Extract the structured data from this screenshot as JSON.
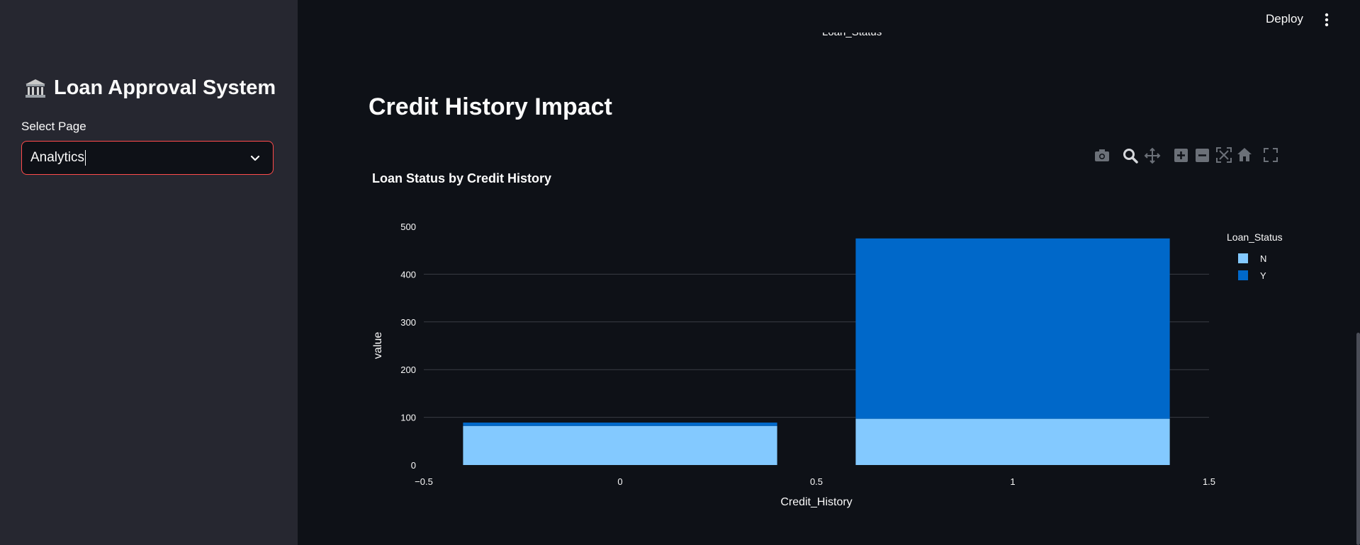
{
  "sidebar": {
    "app_title": "Loan Approval System",
    "app_icon": "bank-icon",
    "select_label": "Select Page",
    "select_value": "Analytics"
  },
  "header": {
    "deploy_label": "Deploy",
    "menu_icon": "kebab-menu-icon"
  },
  "main": {
    "cut_off_text": "Loan_Status",
    "section_title": "Credit History Impact"
  },
  "colors": {
    "accent": "#ff4b4b",
    "series_n": "#83c9ff",
    "series_y": "#0068c9",
    "background": "#0e1117",
    "sidebar_bg": "#262730"
  },
  "modebar": [
    "camera-icon",
    "zoom-icon",
    "pan-icon",
    "zoom-in-icon",
    "zoom-out-icon",
    "autoscale-icon",
    "reset-axes-icon",
    "fullscreen-icon"
  ],
  "chart_data": {
    "type": "bar",
    "barmode": "stack",
    "title": "Loan Status by Credit History",
    "xlabel": "Credit_History",
    "ylabel": "value",
    "x": [
      0,
      1
    ],
    "xlim": [
      -0.5,
      1.5
    ],
    "xticks": [
      "−0.5",
      "0",
      "0.5",
      "1",
      "1.5"
    ],
    "ylim": [
      0,
      500
    ],
    "yticks": [
      "0",
      "100",
      "200",
      "300",
      "400",
      "500"
    ],
    "legend_title": "Loan_Status",
    "legend_position": "top-right",
    "grid": true,
    "series": [
      {
        "name": "N",
        "values": [
          82,
          97
        ]
      },
      {
        "name": "Y",
        "values": [
          7,
          378
        ]
      }
    ]
  }
}
